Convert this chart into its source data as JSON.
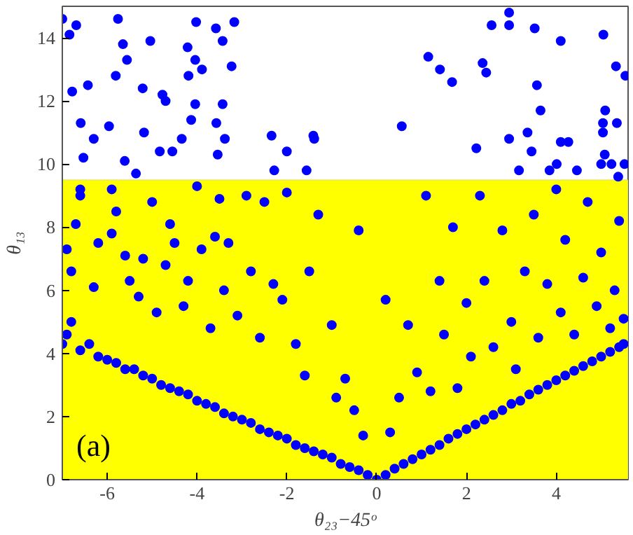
{
  "chart_data": {
    "type": "scatter",
    "xlabel": "θ₂₃−45ᵒ",
    "ylabel": "θ₁₃",
    "xlim": [
      -7,
      5.6
    ],
    "ylim": [
      0,
      15
    ],
    "xticks": [
      -6,
      -4,
      -2,
      0,
      2,
      4
    ],
    "yticks": [
      0,
      2,
      4,
      6,
      8,
      10,
      12,
      14
    ],
    "grid": false,
    "marker": "circle",
    "bands": [
      {
        "axis": "y",
        "from": 0,
        "to": 9.5,
        "color": "#ffff00"
      }
    ],
    "annotations": [
      "(a)"
    ],
    "series": [
      {
        "color": "#0000ff",
        "x": [
          -7.0,
          -6.84,
          -6.69,
          -6.78,
          -6.43,
          -6.59,
          -6.53,
          -6.3,
          -5.76,
          -5.65,
          -5.56,
          -5.81,
          -5.96,
          -5.61,
          -5.36,
          -5.21,
          -5.04,
          -5.18,
          -4.77,
          -4.7,
          -4.83,
          -4.55,
          -4.21,
          -4.19,
          -4.04,
          -4.02,
          -4.04,
          -4.13,
          -3.89,
          -3.58,
          -3.43,
          -3.17,
          -3.23,
          -3.43,
          -3.57,
          -3.38,
          -3.54,
          -2.34,
          -2.0,
          -1.39,
          -1.56,
          -2.28,
          -4.34,
          1.15,
          1.41,
          1.68,
          0.56,
          -1.41,
          2.36,
          2.44,
          2.56,
          2.95,
          2.95,
          3.52,
          4.1,
          5.05,
          3.57,
          3.65,
          3.36,
          2.95,
          2.22,
          3.45,
          4.1,
          4.27,
          5.33,
          5.54,
          5.09,
          5.04,
          5.04,
          5.35,
          5.08,
          5.0,
          5.23,
          5.52,
          4.01,
          3.85,
          4.46,
          3.17,
          5.38,
          -7.0,
          -6.9,
          -6.8,
          -6.6,
          -6.4,
          -6.2,
          -6.0,
          -5.8,
          -5.6,
          -5.4,
          -5.2,
          -5.0,
          -4.8,
          -4.6,
          -4.4,
          -4.2,
          -4.0,
          -3.8,
          -3.6,
          -3.4,
          -3.2,
          -3.0,
          -2.8,
          -2.6,
          -2.4,
          -2.2,
          -2.0,
          -1.8,
          -1.6,
          -1.4,
          -1.2,
          -1.0,
          -0.8,
          -0.6,
          -0.4,
          -0.2,
          0.0,
          0.2,
          0.4,
          0.6,
          0.8,
          1.0,
          1.2,
          1.4,
          1.6,
          1.8,
          2.0,
          2.2,
          2.4,
          2.6,
          2.8,
          3.0,
          3.2,
          3.4,
          3.6,
          3.8,
          4.0,
          4.2,
          4.4,
          4.6,
          4.8,
          5.0,
          5.2,
          5.4,
          5.5,
          -6.8,
          -6.9,
          -6.7,
          -6.6,
          -6.6,
          -6.3,
          -6.2,
          -5.9,
          -5.8,
          -5.9,
          -5.5,
          -5.6,
          -5.3,
          -5.2,
          -5.0,
          -4.9,
          -4.7,
          -4.6,
          -4.5,
          -4.3,
          -4.2,
          -4.0,
          -3.9,
          -3.7,
          -3.6,
          -3.5,
          -3.4,
          -3.3,
          -3.1,
          -2.9,
          -2.8,
          -2.6,
          -2.5,
          -2.3,
          -2.1,
          -2.0,
          -1.8,
          -1.6,
          -1.5,
          -1.3,
          -1.0,
          -0.9,
          -0.7,
          -0.5,
          -0.4,
          -0.3,
          0.2,
          0.3,
          0.5,
          0.7,
          0.9,
          1.1,
          1.2,
          1.4,
          1.5,
          1.7,
          1.8,
          2.0,
          2.1,
          2.3,
          2.4,
          2.6,
          2.8,
          3.0,
          3.1,
          3.3,
          3.5,
          3.6,
          3.8,
          4.0,
          4.1,
          4.2,
          4.4,
          4.6,
          4.7,
          4.9,
          5.0,
          5.2,
          5.3,
          5.4,
          5.5
        ],
        "values": [
          14.6,
          14.1,
          14.4,
          12.3,
          12.5,
          11.3,
          10.2,
          10.8,
          14.6,
          13.8,
          13.3,
          12.8,
          11.2,
          10.1,
          9.7,
          12.4,
          13.9,
          11.0,
          12.2,
          12.0,
          10.4,
          10.4,
          13.7,
          12.8,
          13.3,
          14.5,
          11.9,
          11.4,
          13.0,
          14.3,
          13.9,
          14.5,
          13.1,
          11.9,
          11.3,
          10.8,
          10.3,
          10.9,
          10.4,
          10.8,
          9.8,
          9.8,
          10.8,
          13.4,
          13.0,
          12.6,
          11.2,
          10.9,
          13.2,
          12.9,
          14.4,
          14.8,
          14.4,
          14.3,
          13.9,
          14.1,
          12.5,
          11.7,
          11.0,
          10.8,
          10.5,
          10.4,
          10.7,
          10.7,
          13.1,
          12.8,
          11.7,
          11.3,
          11.0,
          11.3,
          10.3,
          10.0,
          10.0,
          10.0,
          10.0,
          9.8,
          9.8,
          9.8,
          9.6,
          4.3,
          4.6,
          5.0,
          4.1,
          4.3,
          3.9,
          3.8,
          3.7,
          3.5,
          3.5,
          3.3,
          3.2,
          3.0,
          2.9,
          2.8,
          2.7,
          2.5,
          2.4,
          2.3,
          2.1,
          2.0,
          1.9,
          1.8,
          1.6,
          1.5,
          1.4,
          1.3,
          1.1,
          1.0,
          0.9,
          0.8,
          0.7,
          0.5,
          0.4,
          0.3,
          0.15,
          0.0,
          0.15,
          0.35,
          0.5,
          0.65,
          0.8,
          0.95,
          1.1,
          1.3,
          1.45,
          1.6,
          1.75,
          1.9,
          2.05,
          2.2,
          2.4,
          2.5,
          2.7,
          2.85,
          3.0,
          3.15,
          3.3,
          3.45,
          3.6,
          3.75,
          3.9,
          4.05,
          4.2,
          4.3,
          6.6,
          7.3,
          8.1,
          9.0,
          9.2,
          6.1,
          7.5,
          7.8,
          8.5,
          9.2,
          6.3,
          7.1,
          5.8,
          7.0,
          8.8,
          5.3,
          6.8,
          8.1,
          7.5,
          5.5,
          6.3,
          9.3,
          7.3,
          4.8,
          7.7,
          8.9,
          6.0,
          7.5,
          5.2,
          9.0,
          6.6,
          4.5,
          8.8,
          6.2,
          5.7,
          9.1,
          4.3,
          3.3,
          6.6,
          8.4,
          4.9,
          2.6,
          3.2,
          2.2,
          7.9,
          1.4,
          5.7,
          1.5,
          2.6,
          4.9,
          3.4,
          9.0,
          2.8,
          6.3,
          4.6,
          8.0,
          2.9,
          5.6,
          3.9,
          9.0,
          6.3,
          4.2,
          7.9,
          5.0,
          3.5,
          6.6,
          8.4,
          4.5,
          6.2,
          9.2,
          5.3,
          7.6,
          4.6,
          6.4,
          8.8,
          5.5,
          7.2,
          4.8,
          6.0,
          8.2,
          5.1
        ]
      }
    ]
  }
}
